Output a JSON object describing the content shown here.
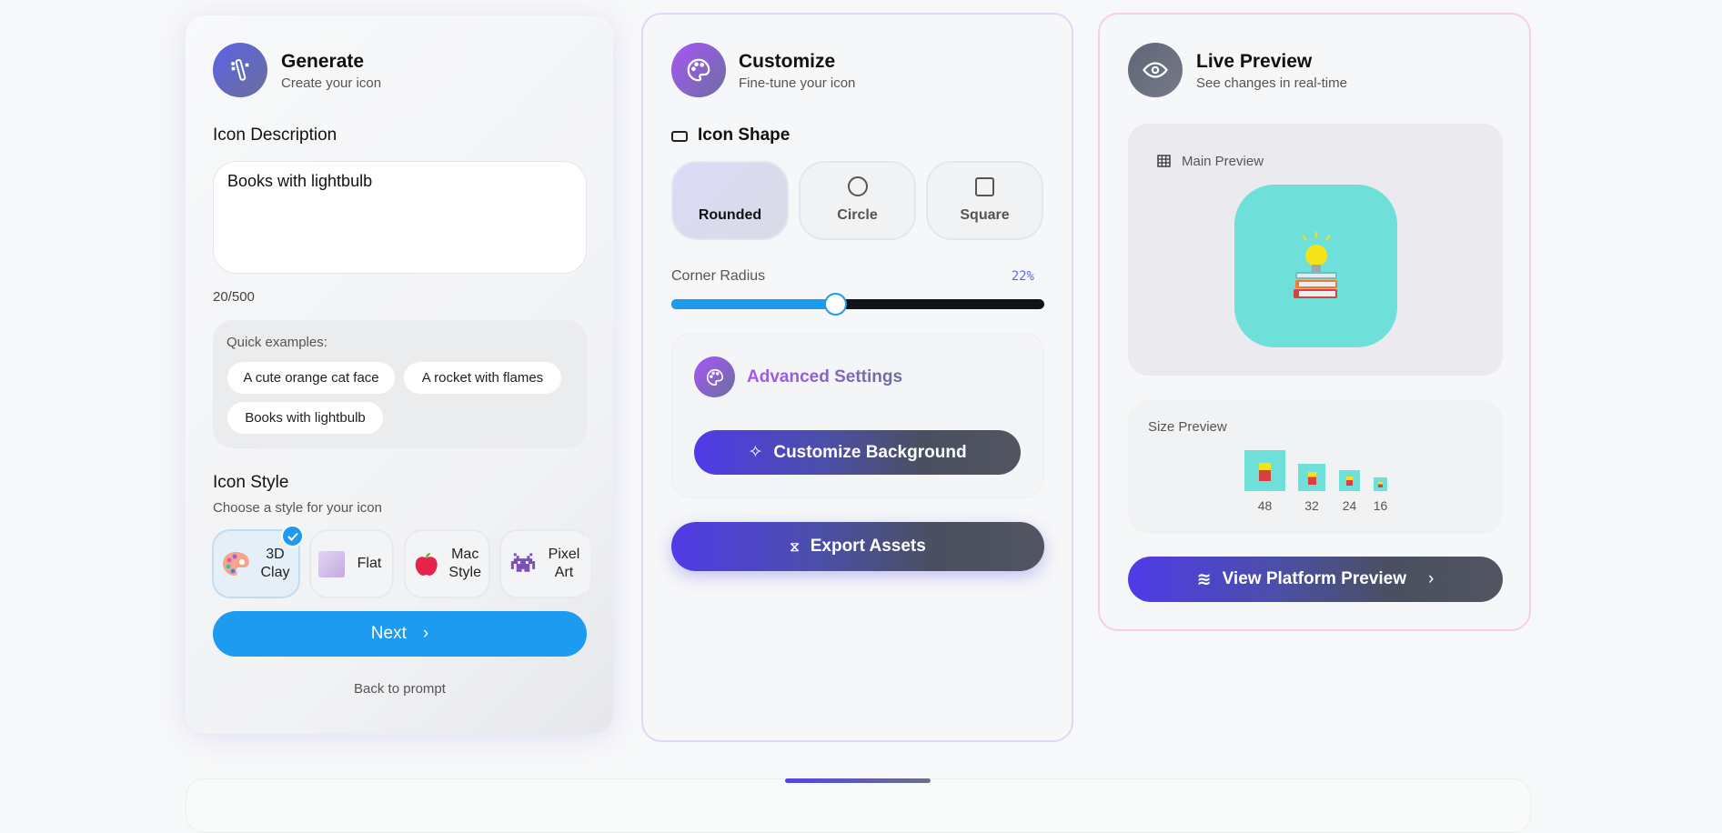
{
  "generate": {
    "title": "Generate",
    "subtitle": "Create your icon",
    "description_label": "Icon Description",
    "description_value": "Books with lightbulb",
    "char_count": "20/500",
    "quick_examples_label": "Quick examples:",
    "quick_examples": [
      "A cute orange cat face",
      "A rocket with flames",
      "Books with lightbulb"
    ],
    "style_label": "Icon Style",
    "style_sub": "Choose a style for your icon",
    "styles": [
      {
        "label": "3D Clay",
        "icon": "palette-icon",
        "selected": true
      },
      {
        "label": "Flat",
        "icon": "square-icon",
        "selected": false
      },
      {
        "label": "Mac Style",
        "icon": "apple-icon",
        "selected": false
      },
      {
        "label": "Pixel Art",
        "icon": "space-invader-icon",
        "selected": false
      }
    ],
    "next_label": "Next",
    "back_label": "Back to prompt"
  },
  "customize": {
    "title": "Customize",
    "subtitle": "Fine-tune your icon",
    "shape_label": "Icon Shape",
    "shapes": [
      {
        "label": "Rounded",
        "selected": true
      },
      {
        "label": "Circle",
        "selected": false
      },
      {
        "label": "Square",
        "selected": false
      }
    ],
    "corner_radius_label": "Corner Radius",
    "corner_radius_value": "22%",
    "slider_fill_fraction": 0.44,
    "advanced_label": "Advanced Settings",
    "customize_bg_label": "Customize Background",
    "export_label": "Export Assets"
  },
  "preview": {
    "title": "Live Preview",
    "subtitle": "See changes in real-time",
    "main_label": "Main Preview",
    "size_label": "Size Preview",
    "sizes": [
      "48",
      "32",
      "24",
      "16"
    ],
    "platform_label": "View Platform Preview",
    "icon_bg": "#6ee0d9"
  },
  "colors": {
    "primary_blue": "#1d9bf0",
    "accent_purple": "#a855f7",
    "gradient_start": "#4f3be8",
    "gradient_end": "#525561"
  }
}
